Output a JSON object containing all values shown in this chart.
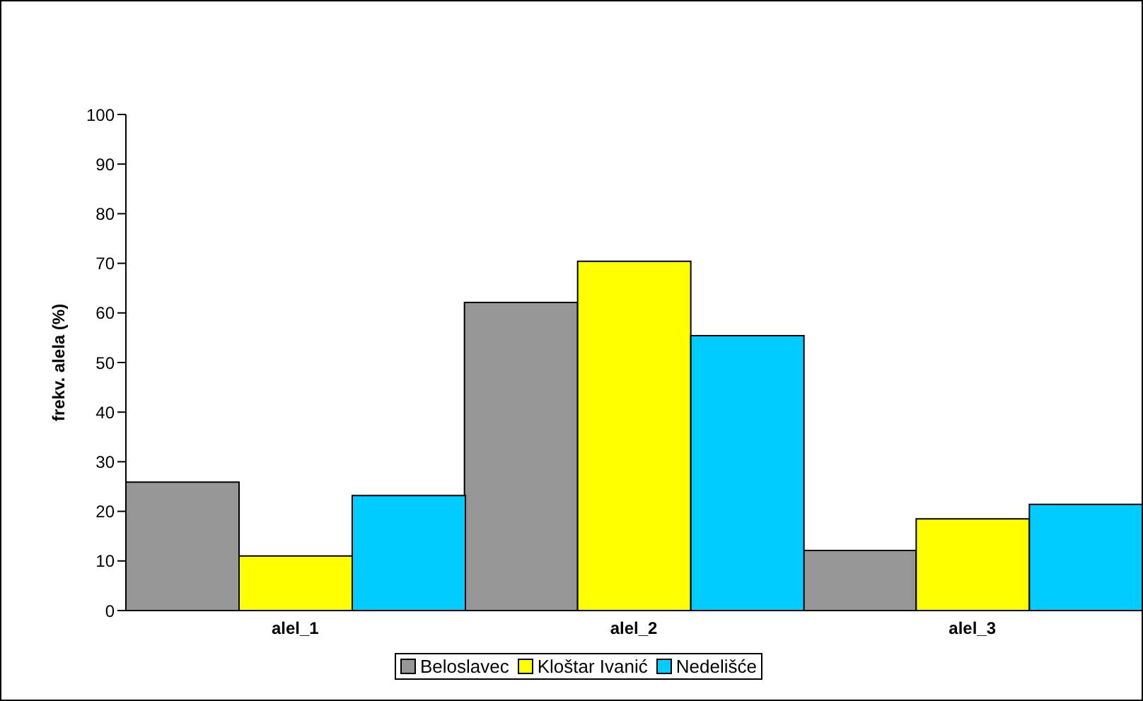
{
  "chart_data": {
    "type": "bar",
    "ylabel": "frekv. alela (%)",
    "categories": [
      "alel_1",
      "alel_2",
      "alel_3"
    ],
    "series": [
      {
        "name": "Beloslavec",
        "color": "#969696",
        "values": [
          25.9,
          62.1,
          12.1
        ]
      },
      {
        "name": "Kloštar Ivanić",
        "color": "#ffff00",
        "values": [
          11.0,
          70.4,
          18.5
        ]
      },
      {
        "name": "Nedelišće",
        "color": "#00ccff",
        "values": [
          23.2,
          55.4,
          21.4
        ]
      }
    ],
    "ylim": [
      0,
      100
    ],
    "yticks": [
      0,
      10,
      20,
      30,
      40,
      50,
      60,
      70,
      80,
      90,
      100
    ],
    "grid": false,
    "legend": "bottom"
  }
}
